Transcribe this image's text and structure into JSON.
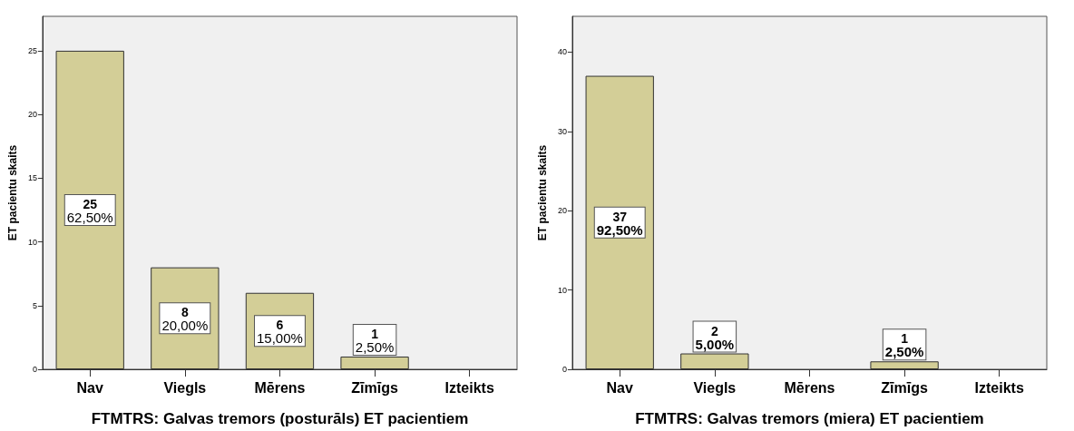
{
  "chart_data": [
    {
      "type": "bar",
      "xlabel": "FTMTRS: Galvas tremors (posturāls) ET pacientiem",
      "ylabel": "ET pacientu skaits",
      "categories": [
        "Nav",
        "Viegls",
        "Mērens",
        "Zīmīgs",
        "Izteikts"
      ],
      "values": [
        25,
        8,
        6,
        1,
        0
      ],
      "value_labels": [
        "25\n62,50%",
        "8\n20,00%",
        "6\n15,00%",
        "1\n2,50%",
        null
      ],
      "color": "#d3ce97",
      "ylim": [
        0,
        27.7
      ],
      "yticks": [
        0,
        5,
        10,
        15,
        20,
        25
      ],
      "grid": false
    },
    {
      "type": "bar",
      "xlabel": "FTMTRS: Galvas tremors (miera) ET pacientiem",
      "ylabel": "ET pacientu skaits",
      "categories": [
        "Nav",
        "Viegls",
        "Mērens",
        "Zīmīgs",
        "Izteikts"
      ],
      "values": [
        37,
        2,
        0,
        1,
        0
      ],
      "value_labels": [
        "37\n92,50%",
        "2\n5,00%",
        null,
        "1\n2,50%",
        null
      ],
      "color": "#d3ce97",
      "ylim": [
        0,
        44.5
      ],
      "yticks": [
        0,
        10,
        20,
        30,
        40
      ],
      "grid": false
    }
  ]
}
